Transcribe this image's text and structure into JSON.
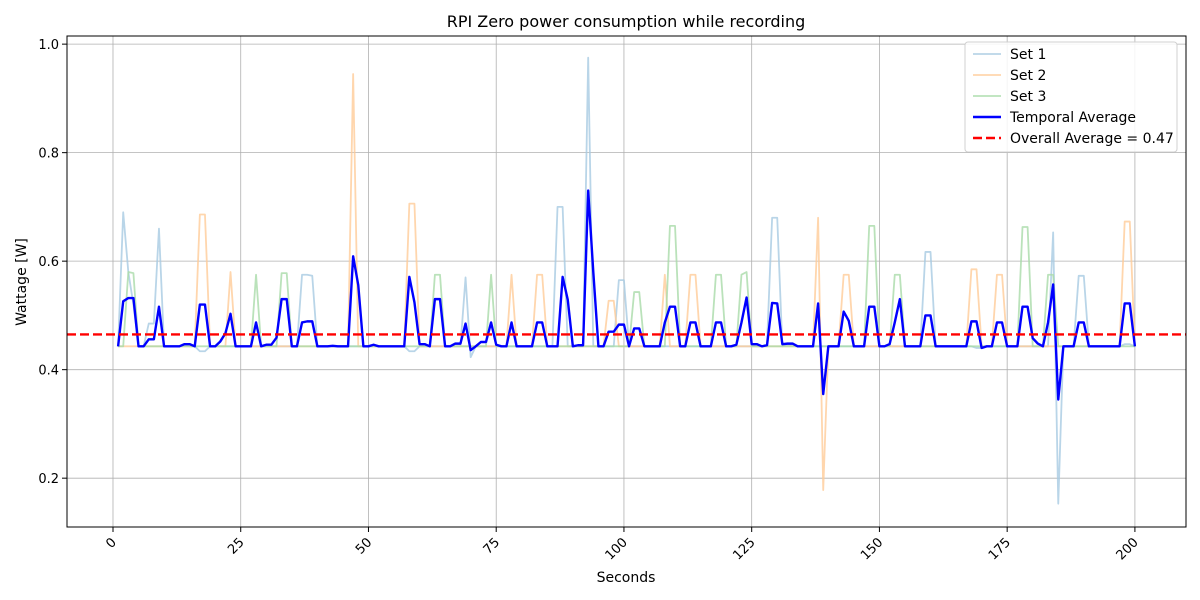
{
  "chart_data": {
    "type": "line",
    "title": "RPI Zero power consumption while recording",
    "xlabel": "Seconds",
    "ylabel": "Wattage [W]",
    "xlim": [
      -9,
      210
    ],
    "ylim": [
      0.11,
      1.015
    ],
    "xticks": [
      0,
      25,
      50,
      75,
      100,
      125,
      150,
      175,
      200
    ],
    "yticks": [
      0.2,
      0.4,
      0.6,
      0.8,
      1.0
    ],
    "ytick_labels": [
      "0.2",
      "0.4",
      "0.6",
      "0.8",
      "1.0"
    ],
    "grid": true,
    "legend_position": "top-right",
    "baseline": 0.443,
    "overall_average": {
      "label": "Overall Average = 0.47",
      "value": 0.465,
      "color": "#ff0000",
      "style": "dashed"
    },
    "series": [
      {
        "name": "Set 1",
        "color": "#a8cbe2",
        "opacity": 0.8,
        "spikes": [
          [
            2,
            0.69
          ],
          [
            3,
            0.58
          ],
          [
            4,
            0.52
          ],
          [
            7,
            0.485
          ],
          [
            8,
            0.485
          ],
          [
            9,
            0.66
          ],
          [
            13,
            0.443
          ],
          [
            14,
            0.446
          ],
          [
            17,
            0.434
          ],
          [
            18,
            0.434
          ],
          [
            37,
            0.575
          ],
          [
            38,
            0.575
          ],
          [
            39,
            0.573
          ],
          [
            58,
            0.434
          ],
          [
            59,
            0.434
          ],
          [
            69,
            0.57
          ],
          [
            70,
            0.423
          ],
          [
            87,
            0.7
          ],
          [
            88,
            0.7
          ],
          [
            93,
            0.975
          ],
          [
            99,
            0.565
          ],
          [
            100,
            0.565
          ],
          [
            128,
            0.447
          ],
          [
            129,
            0.68
          ],
          [
            130,
            0.68
          ],
          [
            132,
            0.445
          ],
          [
            133,
            0.445
          ],
          [
            159,
            0.617
          ],
          [
            160,
            0.617
          ],
          [
            169,
            0.44
          ],
          [
            170,
            0.44
          ],
          [
            184,
            0.653
          ],
          [
            185,
            0.153
          ],
          [
            189,
            0.573
          ],
          [
            190,
            0.573
          ],
          [
            198,
            0.447
          ],
          [
            199,
            0.447
          ]
        ]
      },
      {
        "name": "Set 2",
        "color": "#ffcc99",
        "opacity": 0.8,
        "spikes": [
          [
            17,
            0.686
          ],
          [
            18,
            0.686
          ],
          [
            23,
            0.58
          ],
          [
            47,
            0.945
          ],
          [
            58,
            0.706
          ],
          [
            59,
            0.706
          ],
          [
            78,
            0.575
          ],
          [
            83,
            0.575
          ],
          [
            84,
            0.575
          ],
          [
            97,
            0.527
          ],
          [
            98,
            0.527
          ],
          [
            108,
            0.575
          ],
          [
            113,
            0.575
          ],
          [
            114,
            0.575
          ],
          [
            138,
            0.68
          ],
          [
            139,
            0.178
          ],
          [
            143,
            0.575
          ],
          [
            144,
            0.575
          ],
          [
            168,
            0.585
          ],
          [
            169,
            0.585
          ],
          [
            173,
            0.575
          ],
          [
            174,
            0.575
          ],
          [
            198,
            0.673
          ],
          [
            199,
            0.673
          ]
        ]
      },
      {
        "name": "Set 3",
        "color": "#a9dba9",
        "opacity": 0.8,
        "spikes": [
          [
            3,
            0.58
          ],
          [
            4,
            0.578
          ],
          [
            28,
            0.575
          ],
          [
            33,
            0.578
          ],
          [
            34,
            0.578
          ],
          [
            63,
            0.575
          ],
          [
            64,
            0.575
          ],
          [
            74,
            0.575
          ],
          [
            102,
            0.543
          ],
          [
            103,
            0.543
          ],
          [
            109,
            0.665
          ],
          [
            110,
            0.665
          ],
          [
            118,
            0.575
          ],
          [
            119,
            0.575
          ],
          [
            123,
            0.575
          ],
          [
            124,
            0.58
          ],
          [
            148,
            0.665
          ],
          [
            149,
            0.665
          ],
          [
            153,
            0.575
          ],
          [
            154,
            0.575
          ],
          [
            178,
            0.663
          ],
          [
            179,
            0.663
          ],
          [
            183,
            0.575
          ],
          [
            184,
            0.575
          ]
        ]
      },
      {
        "name": "Temporal Average",
        "color": "#0000ff",
        "opacity": 1,
        "points": [
          [
            1,
            0.443
          ],
          [
            2,
            0.526
          ],
          [
            3,
            0.532
          ],
          [
            4,
            0.532
          ],
          [
            5,
            0.443
          ],
          [
            6,
            0.443
          ],
          [
            7,
            0.456
          ],
          [
            8,
            0.456
          ],
          [
            9,
            0.516
          ],
          [
            10,
            0.443
          ],
          [
            11,
            0.443
          ],
          [
            12,
            0.443
          ],
          [
            13,
            0.443
          ],
          [
            14,
            0.447
          ],
          [
            15,
            0.447
          ],
          [
            16,
            0.443
          ],
          [
            17,
            0.52
          ],
          [
            18,
            0.52
          ],
          [
            19,
            0.443
          ],
          [
            20,
            0.443
          ],
          [
            21,
            0.452
          ],
          [
            22,
            0.467
          ],
          [
            23,
            0.503
          ],
          [
            24,
            0.443
          ],
          [
            25,
            0.443
          ],
          [
            26,
            0.443
          ],
          [
            27,
            0.443
          ],
          [
            28,
            0.487
          ],
          [
            29,
            0.443
          ],
          [
            30,
            0.446
          ],
          [
            31,
            0.446
          ],
          [
            32,
            0.459
          ],
          [
            33,
            0.53
          ],
          [
            34,
            0.53
          ],
          [
            35,
            0.443
          ],
          [
            36,
            0.443
          ],
          [
            37,
            0.487
          ],
          [
            38,
            0.489
          ],
          [
            39,
            0.489
          ],
          [
            40,
            0.443
          ],
          [
            41,
            0.443
          ],
          [
            42,
            0.443
          ],
          [
            43,
            0.444
          ],
          [
            44,
            0.443
          ],
          [
            45,
            0.443
          ],
          [
            46,
            0.443
          ],
          [
            47,
            0.609
          ],
          [
            48,
            0.556
          ],
          [
            49,
            0.443
          ],
          [
            50,
            0.443
          ],
          [
            51,
            0.446
          ],
          [
            52,
            0.443
          ],
          [
            53,
            0.443
          ],
          [
            54,
            0.443
          ],
          [
            55,
            0.443
          ],
          [
            56,
            0.443
          ],
          [
            57,
            0.443
          ],
          [
            58,
            0.571
          ],
          [
            59,
            0.524
          ],
          [
            60,
            0.447
          ],
          [
            61,
            0.447
          ],
          [
            62,
            0.443
          ],
          [
            63,
            0.53
          ],
          [
            64,
            0.53
          ],
          [
            65,
            0.443
          ],
          [
            66,
            0.443
          ],
          [
            67,
            0.448
          ],
          [
            68,
            0.448
          ],
          [
            69,
            0.485
          ],
          [
            70,
            0.436
          ],
          [
            71,
            0.443
          ],
          [
            72,
            0.451
          ],
          [
            73,
            0.451
          ],
          [
            74,
            0.487
          ],
          [
            75,
            0.446
          ],
          [
            76,
            0.443
          ],
          [
            77,
            0.443
          ],
          [
            78,
            0.487
          ],
          [
            79,
            0.443
          ],
          [
            80,
            0.443
          ],
          [
            81,
            0.443
          ],
          [
            82,
            0.443
          ],
          [
            83,
            0.487
          ],
          [
            84,
            0.487
          ],
          [
            85,
            0.443
          ],
          [
            86,
            0.443
          ],
          [
            87,
            0.443
          ],
          [
            88,
            0.571
          ],
          [
            89,
            0.529
          ],
          [
            90,
            0.443
          ],
          [
            91,
            0.445
          ],
          [
            92,
            0.445
          ],
          [
            93,
            0.73
          ],
          [
            94,
            0.58
          ],
          [
            95,
            0.443
          ],
          [
            96,
            0.443
          ],
          [
            97,
            0.47
          ],
          [
            98,
            0.47
          ],
          [
            99,
            0.483
          ],
          [
            100,
            0.483
          ],
          [
            101,
            0.443
          ],
          [
            102,
            0.476
          ],
          [
            103,
            0.476
          ],
          [
            104,
            0.443
          ],
          [
            105,
            0.443
          ],
          [
            106,
            0.443
          ],
          [
            107,
            0.443
          ],
          [
            108,
            0.487
          ],
          [
            109,
            0.516
          ],
          [
            110,
            0.516
          ],
          [
            111,
            0.443
          ],
          [
            112,
            0.443
          ],
          [
            113,
            0.487
          ],
          [
            114,
            0.487
          ],
          [
            115,
            0.443
          ],
          [
            116,
            0.443
          ],
          [
            117,
            0.443
          ],
          [
            118,
            0.487
          ],
          [
            119,
            0.487
          ],
          [
            120,
            0.443
          ],
          [
            121,
            0.443
          ],
          [
            122,
            0.446
          ],
          [
            123,
            0.487
          ],
          [
            124,
            0.533
          ],
          [
            125,
            0.447
          ],
          [
            126,
            0.447
          ],
          [
            127,
            0.443
          ],
          [
            128,
            0.445
          ],
          [
            129,
            0.523
          ],
          [
            130,
            0.522
          ],
          [
            131,
            0.447
          ],
          [
            132,
            0.448
          ],
          [
            133,
            0.448
          ],
          [
            134,
            0.443
          ],
          [
            135,
            0.443
          ],
          [
            136,
            0.443
          ],
          [
            137,
            0.443
          ],
          [
            138,
            0.522
          ],
          [
            139,
            0.355
          ],
          [
            140,
            0.443
          ],
          [
            141,
            0.443
          ],
          [
            142,
            0.443
          ],
          [
            143,
            0.507
          ],
          [
            144,
            0.49
          ],
          [
            145,
            0.443
          ],
          [
            146,
            0.443
          ],
          [
            147,
            0.443
          ],
          [
            148,
            0.516
          ],
          [
            149,
            0.516
          ],
          [
            150,
            0.443
          ],
          [
            151,
            0.443
          ],
          [
            152,
            0.447
          ],
          [
            153,
            0.487
          ],
          [
            154,
            0.53
          ],
          [
            155,
            0.443
          ],
          [
            156,
            0.443
          ],
          [
            157,
            0.443
          ],
          [
            158,
            0.443
          ],
          [
            159,
            0.5
          ],
          [
            160,
            0.5
          ],
          [
            161,
            0.443
          ],
          [
            162,
            0.443
          ],
          [
            163,
            0.443
          ],
          [
            164,
            0.443
          ],
          [
            165,
            0.443
          ],
          [
            166,
            0.443
          ],
          [
            167,
            0.443
          ],
          [
            168,
            0.489
          ],
          [
            169,
            0.489
          ],
          [
            170,
            0.44
          ],
          [
            171,
            0.443
          ],
          [
            172,
            0.443
          ],
          [
            173,
            0.487
          ],
          [
            174,
            0.487
          ],
          [
            175,
            0.443
          ],
          [
            176,
            0.443
          ],
          [
            177,
            0.443
          ],
          [
            178,
            0.516
          ],
          [
            179,
            0.516
          ],
          [
            180,
            0.458
          ],
          [
            181,
            0.448
          ],
          [
            182,
            0.443
          ],
          [
            183,
            0.487
          ],
          [
            184,
            0.557
          ],
          [
            185,
            0.345
          ],
          [
            186,
            0.443
          ],
          [
            187,
            0.443
          ],
          [
            188,
            0.443
          ],
          [
            189,
            0.487
          ],
          [
            190,
            0.487
          ],
          [
            191,
            0.443
          ],
          [
            192,
            0.443
          ],
          [
            193,
            0.443
          ],
          [
            194,
            0.443
          ],
          [
            195,
            0.443
          ],
          [
            196,
            0.443
          ],
          [
            197,
            0.443
          ],
          [
            198,
            0.522
          ],
          [
            199,
            0.522
          ],
          [
            200,
            0.443
          ]
        ]
      }
    ]
  }
}
